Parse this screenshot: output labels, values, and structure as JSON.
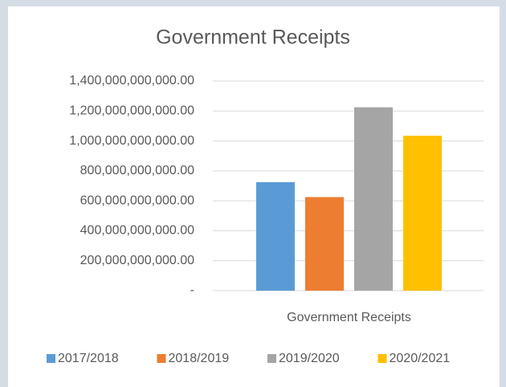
{
  "chart_data": {
    "type": "bar",
    "title": "Government Receipts",
    "categories": [
      "Government Receipts"
    ],
    "series": [
      {
        "name": "2017/2018",
        "color": "#5b9bd5",
        "values": [
          725000000000
        ]
      },
      {
        "name": "2018/2019",
        "color": "#ed7d31",
        "values": [
          625000000000
        ]
      },
      {
        "name": "2019/2020",
        "color": "#a5a5a5",
        "values": [
          1225000000000
        ]
      },
      {
        "name": "2020/2021",
        "color": "#ffc000",
        "values": [
          1035000000000
        ]
      }
    ],
    "ylim": [
      0,
      1400000000000
    ],
    "yticks": [
      {
        "value": 0,
        "label": "-"
      },
      {
        "value": 200000000000,
        "label": "200,000,000,000.00"
      },
      {
        "value": 400000000000,
        "label": "400,000,000,000.00"
      },
      {
        "value": 600000000000,
        "label": "600,000,000,000.00"
      },
      {
        "value": 800000000000,
        "label": "800,000,000,000.00"
      },
      {
        "value": 1000000000000,
        "label": "1,000,000,000,000.00"
      },
      {
        "value": 1200000000000,
        "label": "1,200,000,000,000.00"
      },
      {
        "value": 1400000000000,
        "label": "1,400,000,000,000.00"
      }
    ],
    "grid": true,
    "legend": "bottom"
  }
}
